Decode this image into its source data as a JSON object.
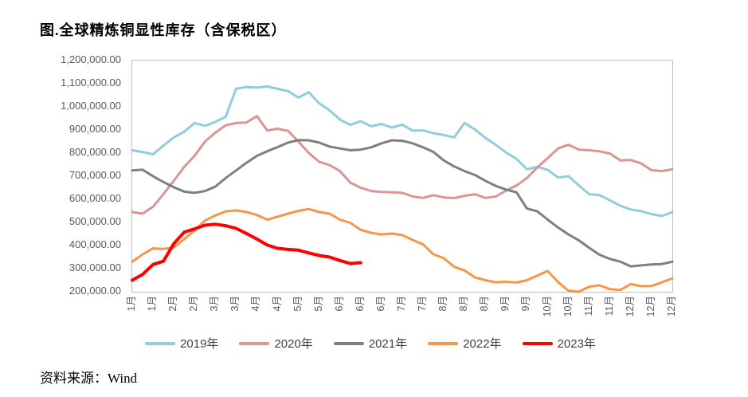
{
  "page": {
    "title": "图.全球精炼铜显性库存（含保税区）",
    "source": "资料来源：Wind"
  },
  "colors": {
    "axis_text": "#595959",
    "plot_border": "#bfbfbf",
    "title_text": "#000000",
    "legend_text": "#404040"
  },
  "chart_data": {
    "type": "line",
    "title": "图.全球精炼铜显性库存（含保税区）",
    "xlabel": "",
    "ylabel": "",
    "gridlines": false,
    "legend_position": "bottom",
    "y_axis": {
      "min": 200000,
      "max": 1200000,
      "step": 100000,
      "tick_labels": [
        "1,200,000.00",
        "1,100,000.00",
        "1,000,000.00",
        "900,000.00",
        "800,000.00",
        "700,000.00",
        "600,000.00",
        "500,000.00",
        "400,000.00",
        "300,000.00",
        "200,000.00"
      ]
    },
    "x_axis": {
      "points": 53,
      "label_every": 2,
      "tick_labels": [
        "1月",
        "1月",
        "2月",
        "2月",
        "3月",
        "3月",
        "4月",
        "4月",
        "5月",
        "5月",
        "6月",
        "6月",
        "6月",
        "7月",
        "7月",
        "8月",
        "8月",
        "8月",
        "9月",
        "9月",
        "10月",
        "10月",
        "11月",
        "11月",
        "12月",
        "12月",
        "12月"
      ]
    },
    "categories": [
      "1月",
      "",
      "1月",
      "",
      "2月",
      "",
      "2月",
      "",
      "3月",
      "",
      "3月",
      "",
      "4月",
      "",
      "4月",
      "",
      "5月",
      "",
      "5月",
      "",
      "6月",
      "",
      "6月",
      "",
      "6月",
      "",
      "7月",
      "",
      "7月",
      "",
      "8月",
      "",
      "8月",
      "",
      "8月",
      "",
      "9月",
      "",
      "9月",
      "",
      "10月",
      "",
      "10月",
      "",
      "11月",
      "",
      "11月",
      "",
      "12月",
      "",
      "12月",
      "",
      "12月"
    ],
    "series": [
      {
        "name": "2019年",
        "color": "#92cddc",
        "line_width": 3,
        "values": [
          812000,
          805000,
          795000,
          832000,
          868000,
          892000,
          930000,
          918000,
          935000,
          957000,
          1078000,
          1086000,
          1083000,
          1088000,
          1078000,
          1068000,
          1040000,
          1063000,
          1015000,
          985000,
          945000,
          922000,
          938000,
          916000,
          926000,
          910000,
          923000,
          897000,
          898000,
          886000,
          878000,
          868000,
          930000,
          902000,
          866000,
          836000,
          802000,
          775000,
          730000,
          740000,
          728000,
          694000,
          700000,
          660000,
          622000,
          618000,
          595000,
          572000,
          556000,
          549000,
          536000,
          528000,
          545000
        ]
      },
      {
        "name": "2020年",
        "color": "#d99694",
        "line_width": 3,
        "values": [
          545000,
          538000,
          568000,
          622000,
          680000,
          740000,
          788000,
          850000,
          888000,
          920000,
          930000,
          932000,
          960000,
          898000,
          905000,
          896000,
          850000,
          800000,
          762000,
          748000,
          722000,
          672000,
          650000,
          636000,
          632000,
          630000,
          628000,
          612000,
          606000,
          618000,
          608000,
          605000,
          615000,
          622000,
          606000,
          612000,
          638000,
          660000,
          692000,
          738000,
          778000,
          820000,
          836000,
          815000,
          812000,
          808000,
          798000,
          768000,
          770000,
          755000,
          726000,
          722000,
          730000
        ]
      },
      {
        "name": "2021年",
        "color": "#7f7f7f",
        "line_width": 3,
        "values": [
          725000,
          728000,
          700000,
          675000,
          652000,
          633000,
          628000,
          636000,
          655000,
          692000,
          725000,
          758000,
          788000,
          808000,
          826000,
          845000,
          856000,
          855000,
          845000,
          828000,
          820000,
          812000,
          815000,
          825000,
          842000,
          855000,
          853000,
          842000,
          825000,
          805000,
          768000,
          742000,
          722000,
          705000,
          680000,
          658000,
          642000,
          630000,
          560000,
          548000,
          512000,
          478000,
          448000,
          422000,
          390000,
          360000,
          342000,
          330000,
          310000,
          314000,
          318000,
          320000,
          330000
        ]
      },
      {
        "name": "2022年",
        "color": "#f79646",
        "line_width": 3,
        "values": [
          330000,
          362000,
          388000,
          385000,
          392000,
          428000,
          465000,
          508000,
          530000,
          548000,
          552000,
          545000,
          532000,
          512000,
          525000,
          538000,
          550000,
          558000,
          545000,
          538000,
          512000,
          498000,
          468000,
          455000,
          448000,
          452000,
          445000,
          424000,
          405000,
          362000,
          345000,
          308000,
          292000,
          262000,
          250000,
          241000,
          243000,
          240000,
          250000,
          270000,
          290000,
          242000,
          205000,
          200000,
          222000,
          228000,
          211000,
          208000,
          233000,
          224000,
          225000,
          241000,
          258000
        ]
      },
      {
        "name": "2023年",
        "color": "#ff0000",
        "line_width": 4,
        "values": [
          250000,
          275000,
          318000,
          332000,
          408000,
          458000,
          472000,
          488000,
          492000,
          486000,
          474000,
          452000,
          428000,
          402000,
          388000,
          383000,
          380000,
          368000,
          357000,
          350000,
          335000,
          322000,
          326000
        ]
      }
    ]
  }
}
